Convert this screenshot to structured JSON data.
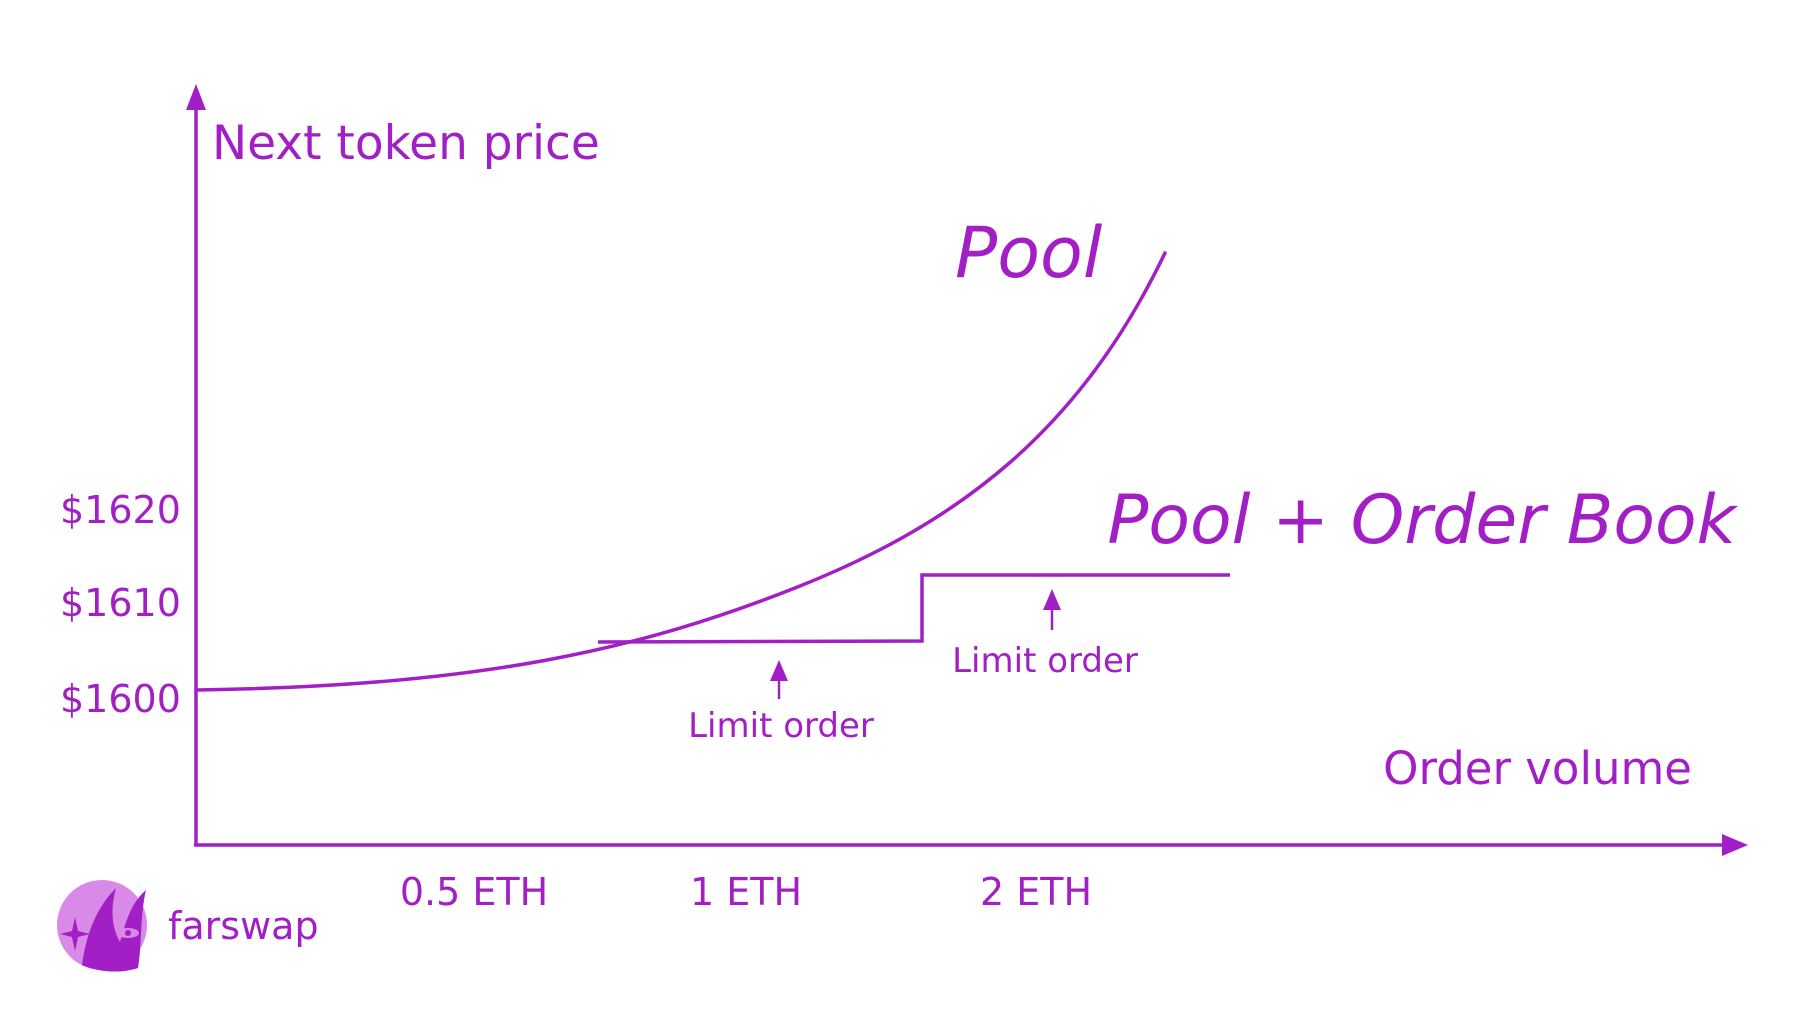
{
  "colors": {
    "accent": "#a21fc6",
    "background": "#ffffff",
    "logo_light": "#d98ae8"
  },
  "labels": {
    "y_axis": "Next token price",
    "x_axis": "Order volume",
    "pool": "Pool",
    "pool_plus_order_book": "Pool + Order Book",
    "limit_order": "Limit order"
  },
  "y_ticks": [
    "$1620",
    "$1610",
    "$1600"
  ],
  "x_ticks": [
    "0.5 ETH",
    "1 ETH",
    "2 ETH"
  ],
  "brand": {
    "name": "farswap",
    "logo_icon": "farswap-logo-icon"
  }
}
